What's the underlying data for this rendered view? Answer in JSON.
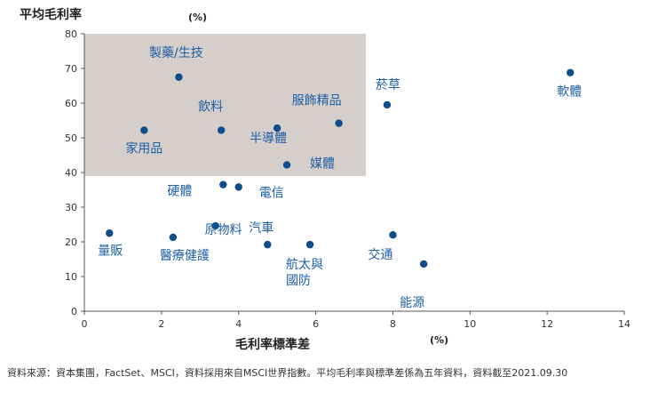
{
  "chart_data": {
    "type": "scatter",
    "ylabel": "平均毛利率",
    "y_unit": "(%)",
    "xlabel": "毛利率標準差",
    "x_unit": "(%)",
    "xlim": [
      0,
      14
    ],
    "ylim": [
      0,
      80
    ],
    "x_ticks": [
      0,
      2,
      4,
      6,
      8,
      10,
      12,
      14
    ],
    "y_ticks": [
      0,
      10,
      20,
      30,
      40,
      50,
      60,
      70,
      80
    ],
    "grid": false,
    "highlight_region": {
      "x": [
        0,
        7.3
      ],
      "y": [
        39,
        80
      ],
      "color": "#d6ceca"
    },
    "point_color": "#0e4c8c",
    "label_color": "#1d5fa5",
    "points": [
      {
        "label": "製藥/生技",
        "x": 2.45,
        "y": 67.5
      },
      {
        "label": "家用品",
        "x": 1.55,
        "y": 52.2
      },
      {
        "label": "飲料",
        "x": 3.55,
        "y": 52.2
      },
      {
        "label": "服飾精品",
        "x": 6.6,
        "y": 54.2
      },
      {
        "label": "菸草",
        "x": 7.85,
        "y": 59.5
      },
      {
        "label": "軟體",
        "x": 12.6,
        "y": 68.8
      },
      {
        "label": "半導體",
        "x": 5.0,
        "y": 52.8
      },
      {
        "label": "媒體",
        "x": 5.25,
        "y": 42.2
      },
      {
        "label": "硬體",
        "x": 3.6,
        "y": 36.5
      },
      {
        "label": "電信",
        "x": 4.0,
        "y": 35.8
      },
      {
        "label": "原物料",
        "x": 3.4,
        "y": 24.6
      },
      {
        "label": "汽車",
        "x": 4.75,
        "y": 19.2
      },
      {
        "label": "航太與國防",
        "x": 5.85,
        "y": 19.2
      },
      {
        "label": "量販",
        "x": 0.65,
        "y": 22.5
      },
      {
        "label": "醫療健護",
        "x": 2.3,
        "y": 21.3
      },
      {
        "label": "交通",
        "x": 8.0,
        "y": 22.0
      },
      {
        "label": "能源",
        "x": 8.8,
        "y": 13.6
      }
    ]
  },
  "footnote": "資料來源：資本集團，FactSet、MSCI，資料採用來自MSCI世界指數。平均毛利率與標準差係為五年資料，資料截至2021.09.30"
}
